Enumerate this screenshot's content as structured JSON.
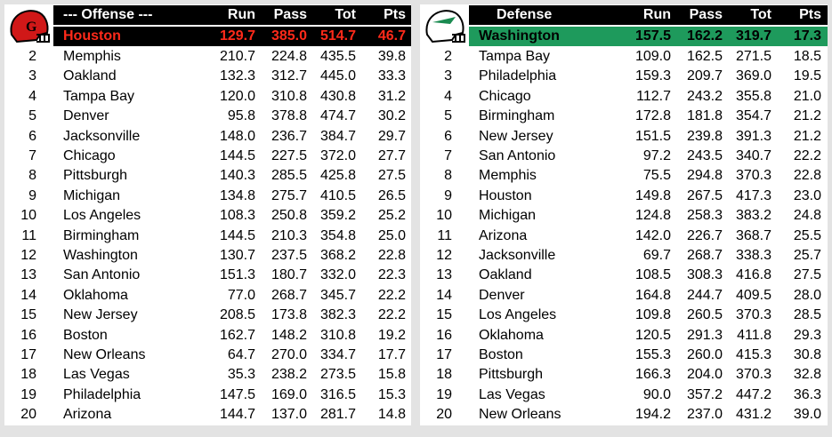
{
  "offense": {
    "header": [
      "--- Offense ---",
      "Run",
      "Pass",
      "Tot",
      "Pts"
    ],
    "leader": [
      "Houston",
      "129.7",
      "385.0",
      "514.7",
      "46.7"
    ],
    "rows": [
      [
        2,
        "Memphis",
        "210.7",
        "224.8",
        "435.5",
        "39.8"
      ],
      [
        3,
        "Oakland",
        "132.3",
        "312.7",
        "445.0",
        "33.3"
      ],
      [
        4,
        "Tampa Bay",
        "120.0",
        "310.8",
        "430.8",
        "31.2"
      ],
      [
        5,
        "Denver",
        "95.8",
        "378.8",
        "474.7",
        "30.2"
      ],
      [
        6,
        "Jacksonville",
        "148.0",
        "236.7",
        "384.7",
        "29.7"
      ],
      [
        7,
        "Chicago",
        "144.5",
        "227.5",
        "372.0",
        "27.7"
      ],
      [
        8,
        "Pittsburgh",
        "140.3",
        "285.5",
        "425.8",
        "27.5"
      ],
      [
        9,
        "Michigan",
        "134.8",
        "275.7",
        "410.5",
        "26.5"
      ],
      [
        10,
        "Los Angeles",
        "108.3",
        "250.8",
        "359.2",
        "25.2"
      ],
      [
        11,
        "Birmingham",
        "144.5",
        "210.3",
        "354.8",
        "25.0"
      ],
      [
        12,
        "Washington",
        "130.7",
        "237.5",
        "368.2",
        "22.8"
      ],
      [
        13,
        "San Antonio",
        "151.3",
        "180.7",
        "332.0",
        "22.3"
      ],
      [
        14,
        "Oklahoma",
        "77.0",
        "268.7",
        "345.7",
        "22.2"
      ],
      [
        15,
        "New Jersey",
        "208.5",
        "173.8",
        "382.3",
        "22.2"
      ],
      [
        16,
        "Boston",
        "162.7",
        "148.2",
        "310.8",
        "19.2"
      ],
      [
        17,
        "New Orleans",
        "64.7",
        "270.0",
        "334.7",
        "17.7"
      ],
      [
        18,
        "Las Vegas",
        "35.3",
        "238.2",
        "273.5",
        "15.8"
      ],
      [
        19,
        "Philadelphia",
        "147.5",
        "169.0",
        "316.5",
        "15.3"
      ],
      [
        20,
        "Arizona",
        "144.7",
        "137.0",
        "281.7",
        "14.8"
      ]
    ]
  },
  "defense": {
    "header": [
      "Defense",
      "Run",
      "Pass",
      "Tot",
      "Pts"
    ],
    "leader": [
      "Washington",
      "157.5",
      "162.2",
      "319.7",
      "17.3"
    ],
    "rows": [
      [
        2,
        "Tampa Bay",
        "109.0",
        "162.5",
        "271.5",
        "18.5"
      ],
      [
        3,
        "Philadelphia",
        "159.3",
        "209.7",
        "369.0",
        "19.5"
      ],
      [
        4,
        "Chicago",
        "112.7",
        "243.2",
        "355.8",
        "21.0"
      ],
      [
        5,
        "Birmingham",
        "172.8",
        "181.8",
        "354.7",
        "21.2"
      ],
      [
        6,
        "New Jersey",
        "151.5",
        "239.8",
        "391.3",
        "21.2"
      ],
      [
        7,
        "San Antonio",
        "97.2",
        "243.5",
        "340.7",
        "22.2"
      ],
      [
        8,
        "Memphis",
        "75.5",
        "294.8",
        "370.3",
        "22.8"
      ],
      [
        9,
        "Houston",
        "149.8",
        "267.5",
        "417.3",
        "23.0"
      ],
      [
        10,
        "Michigan",
        "124.8",
        "258.3",
        "383.2",
        "24.8"
      ],
      [
        11,
        "Arizona",
        "142.0",
        "226.7",
        "368.7",
        "25.5"
      ],
      [
        12,
        "Jacksonville",
        "69.7",
        "268.7",
        "338.3",
        "25.7"
      ],
      [
        13,
        "Oakland",
        "108.5",
        "308.3",
        "416.8",
        "27.5"
      ],
      [
        14,
        "Denver",
        "164.8",
        "244.7",
        "409.5",
        "28.0"
      ],
      [
        15,
        "Los Angeles",
        "109.8",
        "260.5",
        "370.3",
        "28.5"
      ],
      [
        16,
        "Oklahoma",
        "120.5",
        "291.3",
        "411.8",
        "29.3"
      ],
      [
        17,
        "Boston",
        "155.3",
        "260.0",
        "415.3",
        "30.8"
      ],
      [
        18,
        "Pittsburgh",
        "166.3",
        "204.0",
        "370.3",
        "32.8"
      ],
      [
        19,
        "Las Vegas",
        "90.0",
        "357.2",
        "447.2",
        "36.3"
      ],
      [
        20,
        "New Orleans",
        "194.2",
        "237.0",
        "431.2",
        "39.0"
      ]
    ]
  }
}
